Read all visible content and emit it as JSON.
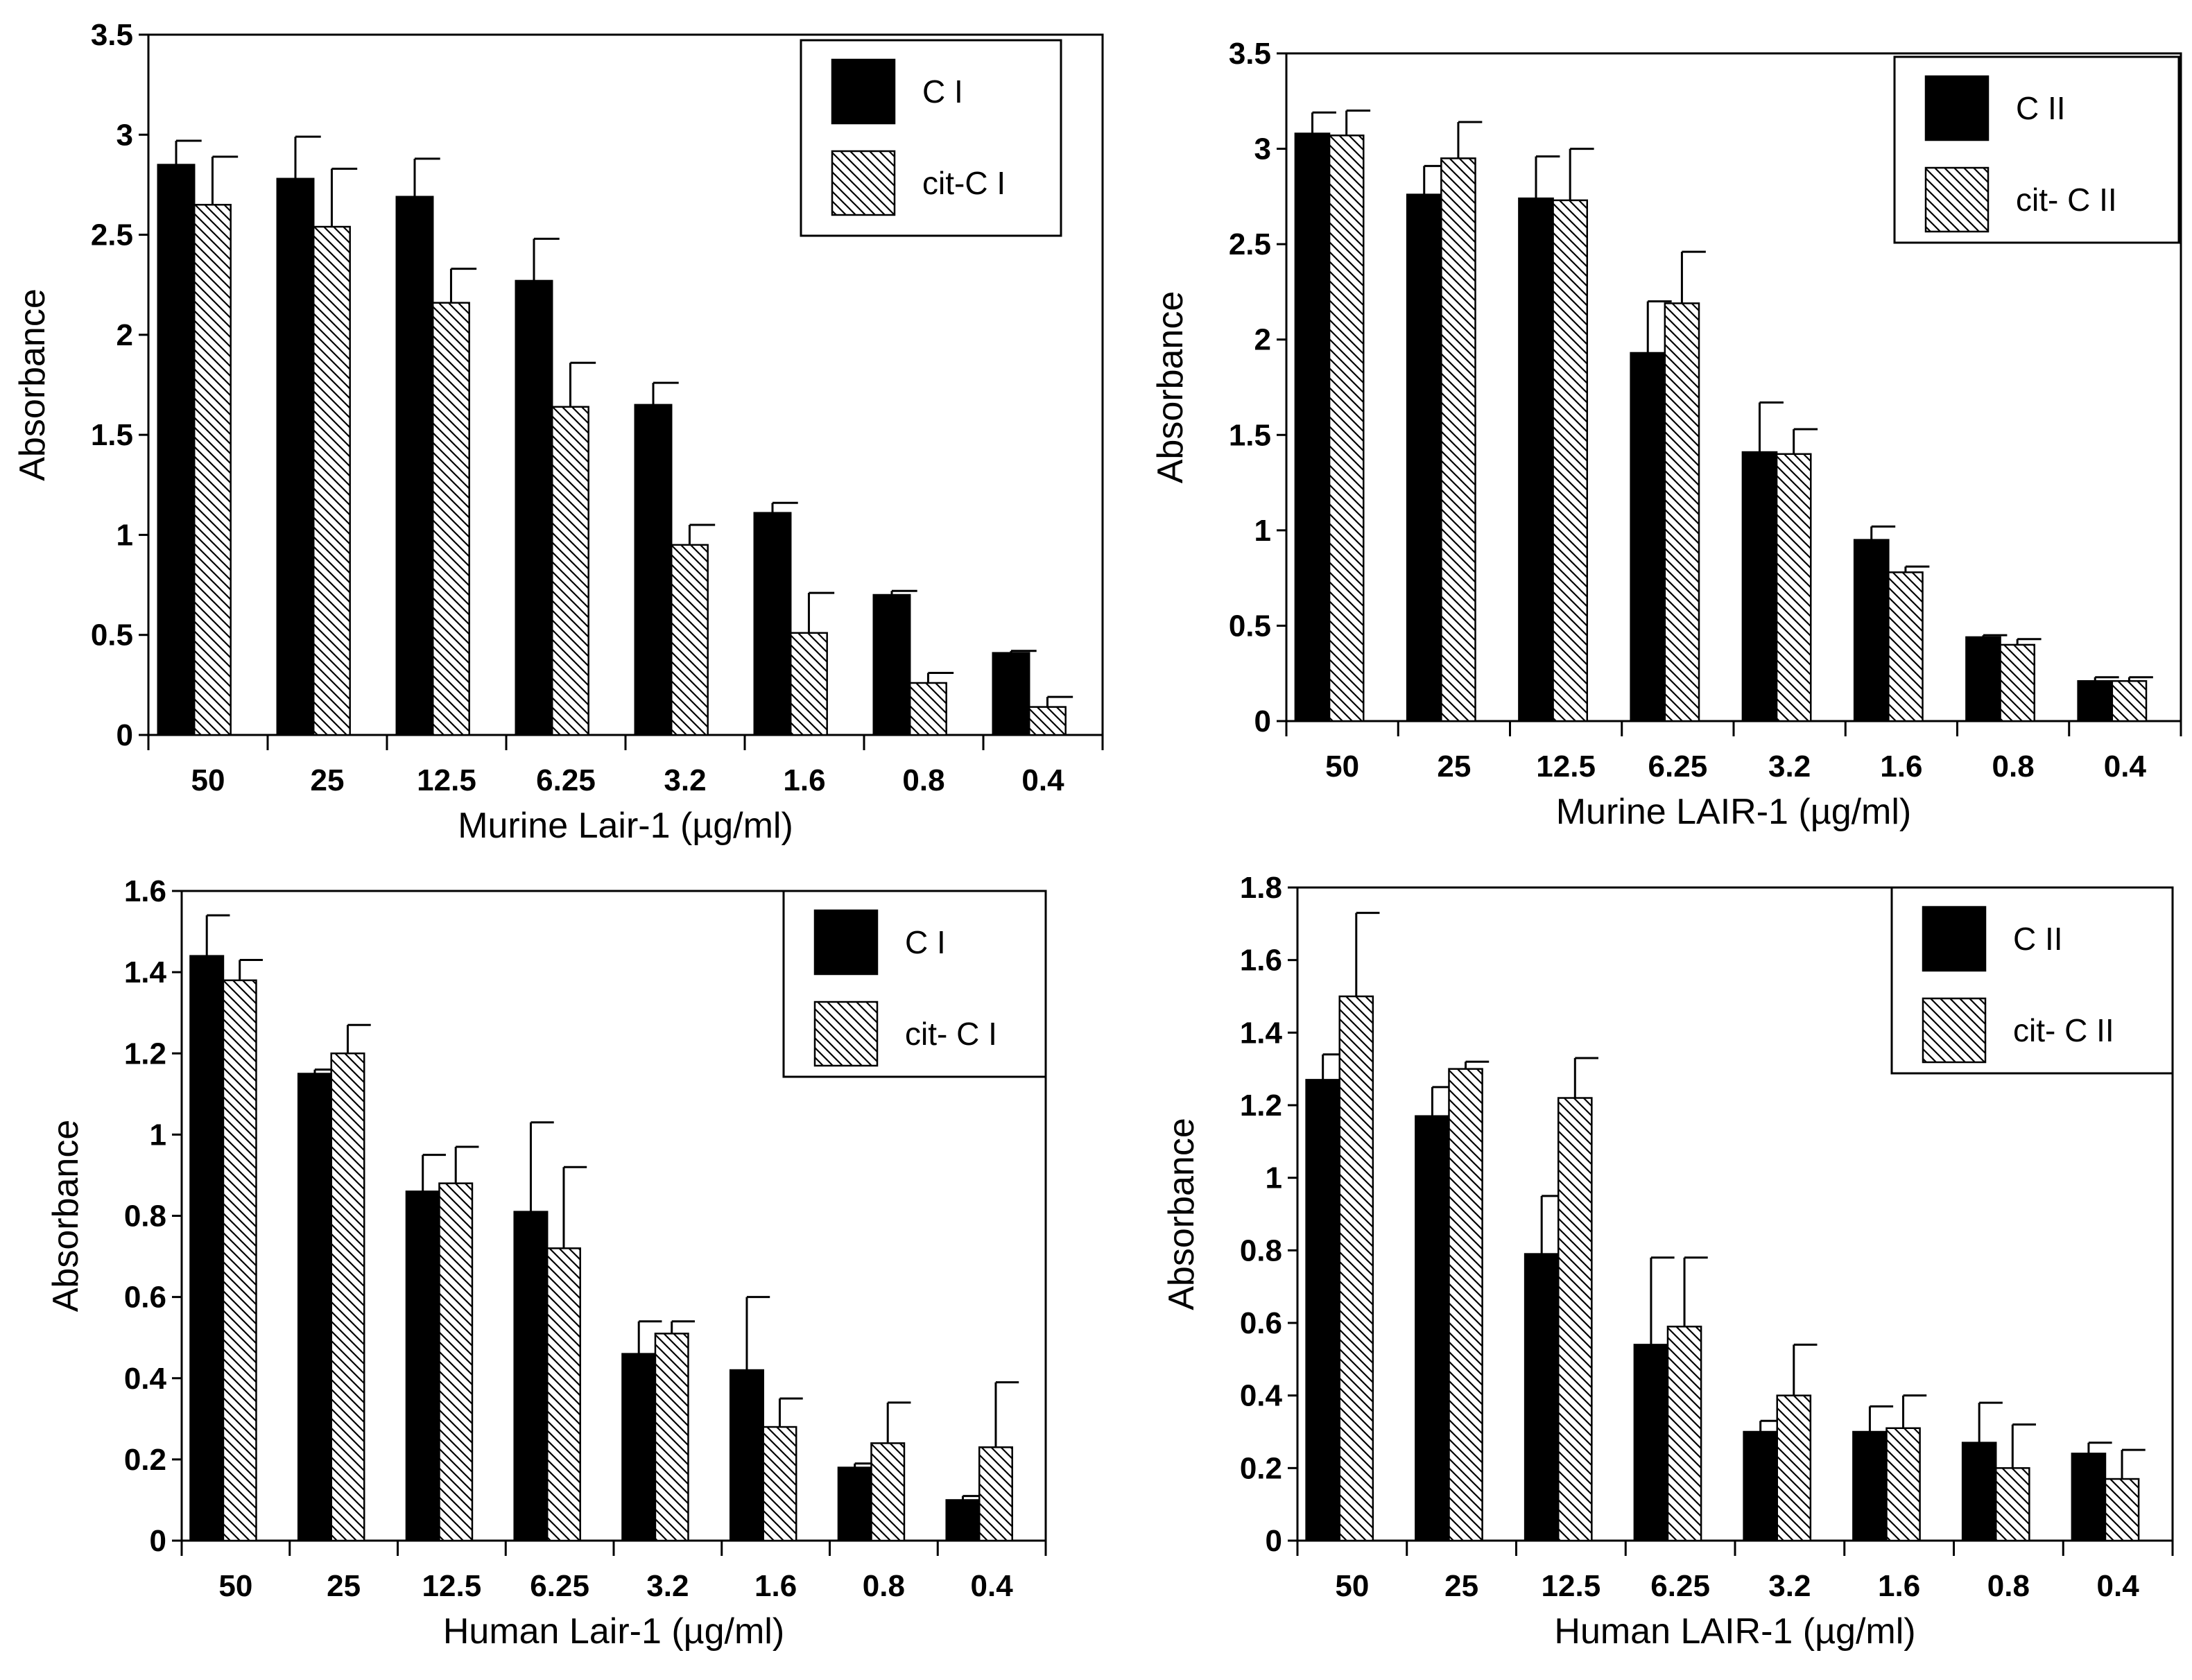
{
  "colors": {
    "solid_bar": "#000000",
    "hatched_bar_fill": "#ffffff",
    "hatch_line": "#000000",
    "axis": "#000000"
  },
  "chart_data": [
    {
      "type": "bar",
      "ylabel": "Absorbance",
      "xlabel": "Murine Lair-1 (µg/ml)",
      "categories": [
        "50",
        "25",
        "12.5",
        "6.25",
        "3.2",
        "1.6",
        "0.8",
        "0.4"
      ],
      "ylim": [
        0,
        3.5
      ],
      "yticks": [
        "0",
        "0.5",
        "1",
        "1.5",
        "2",
        "2.5",
        "3",
        "3.5"
      ],
      "legend_position": "top-right",
      "series": [
        {
          "name": "C I",
          "style": "solid",
          "values": [
            2.85,
            2.78,
            2.69,
            2.27,
            1.65,
            1.11,
            0.7,
            0.41
          ],
          "errors": [
            0.12,
            0.21,
            0.19,
            0.21,
            0.11,
            0.05,
            0.02,
            0.01
          ]
        },
        {
          "name": "cit-C I",
          "style": "hatched",
          "values": [
            2.65,
            2.54,
            2.16,
            1.64,
            0.95,
            0.51,
            0.26,
            0.14
          ],
          "errors": [
            0.24,
            0.29,
            0.17,
            0.22,
            0.1,
            0.2,
            0.05,
            0.05
          ]
        }
      ]
    },
    {
      "type": "bar",
      "ylabel": "Absorbance",
      "xlabel": "Murine LAIR-1 (µg/ml)",
      "categories": [
        "50",
        "25",
        "12.5",
        "6.25",
        "3.2",
        "1.6",
        "0.8",
        "0.4"
      ],
      "ylim": [
        0,
        3.5
      ],
      "yticks": [
        "0",
        "0.5",
        "1",
        "1.5",
        "2",
        "2.5",
        "3",
        "3.5"
      ],
      "legend_position": "top-right",
      "series": [
        {
          "name": "C II",
          "style": "solid",
          "values": [
            3.08,
            2.76,
            2.74,
            1.93,
            1.41,
            0.95,
            0.44,
            0.21
          ],
          "errors": [
            0.11,
            0.15,
            0.22,
            0.27,
            0.26,
            0.07,
            0.01,
            0.02
          ]
        },
        {
          "name": "cit- C II",
          "style": "hatched",
          "values": [
            3.07,
            2.95,
            2.73,
            2.19,
            1.4,
            0.78,
            0.4,
            0.21
          ],
          "errors": [
            0.13,
            0.19,
            0.27,
            0.27,
            0.13,
            0.03,
            0.03,
            0.02
          ]
        }
      ]
    },
    {
      "type": "bar",
      "ylabel": "Absorbance",
      "xlabel": "Human Lair-1 (µg/ml)",
      "categories": [
        "50",
        "25",
        "12.5",
        "6.25",
        "3.2",
        "1.6",
        "0.8",
        "0.4"
      ],
      "ylim": [
        0,
        1.6
      ],
      "yticks": [
        "0",
        "0.2",
        "0.4",
        "0.6",
        "0.8",
        "1",
        "1.2",
        "1.4",
        "1.6"
      ],
      "legend_position": "top-right",
      "series": [
        {
          "name": "C I",
          "style": "solid",
          "values": [
            1.44,
            1.15,
            0.86,
            0.81,
            0.46,
            0.42,
            0.18,
            0.1
          ],
          "errors": [
            0.1,
            0.01,
            0.09,
            0.22,
            0.08,
            0.18,
            0.01,
            0.01
          ]
        },
        {
          "name": "cit- C I",
          "style": "hatched",
          "values": [
            1.38,
            1.2,
            0.88,
            0.72,
            0.51,
            0.28,
            0.24,
            0.23
          ],
          "errors": [
            0.05,
            0.07,
            0.09,
            0.2,
            0.03,
            0.07,
            0.1,
            0.16
          ]
        }
      ]
    },
    {
      "type": "bar",
      "ylabel": "Absorbance",
      "xlabel": "Human LAIR-1 (µg/ml)",
      "categories": [
        "50",
        "25",
        "12.5",
        "6.25",
        "3.2",
        "1.6",
        "0.8",
        "0.4"
      ],
      "ylim": [
        0,
        1.8
      ],
      "yticks": [
        "0",
        "0.2",
        "0.4",
        "0.6",
        "0.8",
        "1",
        "1.2",
        "1.4",
        "1.6",
        "1.8"
      ],
      "legend_position": "top-right",
      "series": [
        {
          "name": "C II",
          "style": "solid",
          "values": [
            1.27,
            1.17,
            0.79,
            0.54,
            0.3,
            0.3,
            0.27,
            0.24
          ],
          "errors": [
            0.07,
            0.08,
            0.16,
            0.24,
            0.03,
            0.07,
            0.11,
            0.03
          ]
        },
        {
          "name": "cit- C II",
          "style": "hatched",
          "values": [
            1.5,
            1.3,
            1.22,
            0.59,
            0.4,
            0.31,
            0.2,
            0.17
          ],
          "errors": [
            0.23,
            0.02,
            0.11,
            0.19,
            0.14,
            0.09,
            0.12,
            0.08
          ]
        }
      ]
    }
  ]
}
